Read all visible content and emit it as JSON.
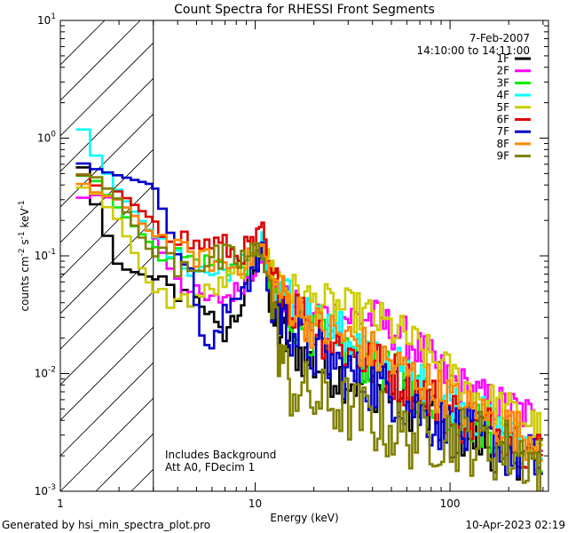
{
  "chart_data": {
    "type": "line",
    "scale": "log-log",
    "title": "Count Spectra for RHESSI Front Segments",
    "xlabel": "Energy (keV)",
    "ylabel_text": "counts cm",
    "ylabel_sup1": "-2",
    "ylabel_mid": " s",
    "ylabel_sup2": "-1",
    "ylabel_mid2": " keV",
    "ylabel_sup3": "-1",
    "xlim": [
      1,
      320
    ],
    "ylim": [
      0.001,
      10
    ],
    "x_ticks": [
      {
        "value": 1,
        "label": "1"
      },
      {
        "value": 10,
        "label": "10"
      },
      {
        "value": 100,
        "label": "100"
      }
    ],
    "y_ticks": [
      {
        "value": 0.001,
        "base": "10",
        "exp": "-3"
      },
      {
        "value": 0.01,
        "base": "10",
        "exp": "-2"
      },
      {
        "value": 0.1,
        "base": "10",
        "exp": "-1"
      },
      {
        "value": 1,
        "base": "10",
        "exp": "0"
      },
      {
        "value": 10,
        "base": "10",
        "exp": "1"
      }
    ],
    "excluded_region_max_energy": 3,
    "date": "7-Feb-2007",
    "time_range": "14:10:00 to 14:11:00",
    "annotations": [
      "Includes Background",
      "Att A0, FDecim 1"
    ],
    "footer_left": "Generated by hsi_min_spectra_plot.pro",
    "footer_right": "10-Apr-2023 02:19",
    "series": [
      {
        "name": "1F",
        "color": "#000000",
        "noise": 0.22,
        "points": [
          [
            1.2,
            0.85
          ],
          [
            1.5,
            0.3
          ],
          [
            2.0,
            0.08
          ],
          [
            3.0,
            0.065
          ],
          [
            4.0,
            0.045
          ],
          [
            5.5,
            0.042
          ],
          [
            6.5,
            0.02
          ],
          [
            8.0,
            0.03
          ],
          [
            9.5,
            0.06
          ],
          [
            11,
            0.14
          ],
          [
            12,
            0.03
          ],
          [
            14,
            0.02
          ],
          [
            20,
            0.012
          ],
          [
            30,
            0.009
          ],
          [
            50,
            0.007
          ],
          [
            80,
            0.004
          ],
          [
            120,
            0.003
          ],
          [
            200,
            0.0022
          ],
          [
            300,
            0.0018
          ]
        ]
      },
      {
        "name": "2F",
        "color": "#ff00ff",
        "noise": 0.18,
        "points": [
          [
            1.2,
            0.3
          ],
          [
            1.5,
            0.33
          ],
          [
            2.0,
            0.3
          ],
          [
            3.0,
            0.15
          ],
          [
            4.5,
            0.05
          ],
          [
            6.0,
            0.04
          ],
          [
            8.0,
            0.05
          ],
          [
            10,
            0.08
          ],
          [
            11,
            0.12
          ],
          [
            12,
            0.05
          ],
          [
            15,
            0.035
          ],
          [
            20,
            0.032
          ],
          [
            30,
            0.03
          ],
          [
            40,
            0.03
          ],
          [
            60,
            0.02
          ],
          [
            100,
            0.009
          ],
          [
            150,
            0.006
          ],
          [
            250,
            0.0045
          ],
          [
            300,
            0.003
          ]
        ]
      },
      {
        "name": "3F",
        "color": "#00ee00",
        "noise": 0.2,
        "points": [
          [
            1.2,
            0.5
          ],
          [
            1.5,
            0.45
          ],
          [
            2.0,
            0.25
          ],
          [
            3.0,
            0.12
          ],
          [
            5.0,
            0.09
          ],
          [
            8.0,
            0.08
          ],
          [
            10,
            0.09
          ],
          [
            11,
            0.12
          ],
          [
            12,
            0.05
          ],
          [
            15,
            0.03
          ],
          [
            20,
            0.02
          ],
          [
            30,
            0.015
          ],
          [
            50,
            0.01
          ],
          [
            80,
            0.006
          ],
          [
            120,
            0.004
          ],
          [
            200,
            0.003
          ],
          [
            300,
            0.0022
          ]
        ]
      },
      {
        "name": "4F",
        "color": "#00ffff",
        "noise": 0.2,
        "points": [
          [
            1.2,
            1.7
          ],
          [
            1.4,
            0.9
          ],
          [
            2.0,
            0.35
          ],
          [
            3.0,
            0.15
          ],
          [
            4.0,
            0.09
          ],
          [
            6.0,
            0.07
          ],
          [
            8.0,
            0.08
          ],
          [
            10,
            0.1
          ],
          [
            11,
            0.14
          ],
          [
            12,
            0.05
          ],
          [
            15,
            0.04
          ],
          [
            20,
            0.03
          ],
          [
            30,
            0.02
          ],
          [
            50,
            0.012
          ],
          [
            80,
            0.007
          ],
          [
            120,
            0.005
          ],
          [
            200,
            0.003
          ],
          [
            300,
            0.0022
          ]
        ]
      },
      {
        "name": "5F",
        "color": "#cccc00",
        "noise": 0.18,
        "points": [
          [
            1.2,
            0.4
          ],
          [
            1.5,
            0.35
          ],
          [
            2.0,
            0.2
          ],
          [
            3.0,
            0.05
          ],
          [
            4.0,
            0.04
          ],
          [
            6.0,
            0.05
          ],
          [
            8.0,
            0.07
          ],
          [
            10,
            0.1
          ],
          [
            11,
            0.13
          ],
          [
            12,
            0.08
          ],
          [
            15,
            0.05
          ],
          [
            20,
            0.04
          ],
          [
            30,
            0.035
          ],
          [
            40,
            0.03
          ],
          [
            60,
            0.02
          ],
          [
            100,
            0.01
          ],
          [
            150,
            0.006
          ],
          [
            250,
            0.004
          ],
          [
            300,
            0.003
          ]
        ]
      },
      {
        "name": "6F",
        "color": "#dd0000",
        "noise": 0.22,
        "points": [
          [
            1.2,
            0.55
          ],
          [
            1.5,
            0.4
          ],
          [
            2.0,
            0.35
          ],
          [
            3.0,
            0.2
          ],
          [
            4.0,
            0.15
          ],
          [
            5.0,
            0.12
          ],
          [
            6.0,
            0.13
          ],
          [
            7.0,
            0.12
          ],
          [
            8.0,
            0.1
          ],
          [
            10,
            0.13
          ],
          [
            11,
            0.16
          ],
          [
            12,
            0.06
          ],
          [
            15,
            0.04
          ],
          [
            20,
            0.025
          ],
          [
            30,
            0.015
          ],
          [
            50,
            0.01
          ],
          [
            80,
            0.006
          ],
          [
            120,
            0.004
          ],
          [
            200,
            0.003
          ],
          [
            300,
            0.002
          ]
        ]
      },
      {
        "name": "7F",
        "color": "#0000cc",
        "noise": 0.25,
        "points": [
          [
            1.2,
            0.65
          ],
          [
            1.5,
            0.55
          ],
          [
            2.0,
            0.48
          ],
          [
            3.0,
            0.4
          ],
          [
            3.5,
            0.25
          ],
          [
            4.5,
            0.08
          ],
          [
            5.5,
            0.02
          ],
          [
            6.0,
            0.015
          ],
          [
            7.0,
            0.03
          ],
          [
            8.0,
            0.05
          ],
          [
            9.0,
            0.06
          ],
          [
            10,
            0.08
          ],
          [
            11,
            0.1
          ],
          [
            12,
            0.04
          ],
          [
            15,
            0.025
          ],
          [
            20,
            0.015
          ],
          [
            30,
            0.01
          ],
          [
            50,
            0.007
          ],
          [
            80,
            0.004
          ],
          [
            120,
            0.003
          ],
          [
            200,
            0.0022
          ],
          [
            300,
            0.0016
          ]
        ]
      },
      {
        "name": "8F",
        "color": "#ff8800",
        "noise": 0.2,
        "points": [
          [
            1.2,
            0.45
          ],
          [
            1.5,
            0.35
          ],
          [
            2.0,
            0.3
          ],
          [
            3.0,
            0.15
          ],
          [
            4.0,
            0.11
          ],
          [
            6.0,
            0.09
          ],
          [
            8.0,
            0.08
          ],
          [
            10,
            0.1
          ],
          [
            11,
            0.12
          ],
          [
            12,
            0.06
          ],
          [
            15,
            0.04
          ],
          [
            20,
            0.025
          ],
          [
            30,
            0.02
          ],
          [
            50,
            0.012
          ],
          [
            80,
            0.008
          ],
          [
            120,
            0.005
          ],
          [
            200,
            0.0035
          ],
          [
            300,
            0.0025
          ]
        ]
      },
      {
        "name": "9F",
        "color": "#808000",
        "noise": 0.3,
        "points": [
          [
            1.2,
            0.5
          ],
          [
            1.5,
            0.48
          ],
          [
            2.0,
            0.3
          ],
          [
            3.0,
            0.1
          ],
          [
            4.0,
            0.09
          ],
          [
            6.0,
            0.09
          ],
          [
            8.0,
            0.09
          ],
          [
            10,
            0.1
          ],
          [
            11,
            0.12
          ],
          [
            12,
            0.05
          ],
          [
            13,
            0.02
          ],
          [
            15,
            0.008
          ],
          [
            20,
            0.006
          ],
          [
            30,
            0.005
          ],
          [
            40,
            0.004
          ],
          [
            60,
            0.003
          ],
          [
            100,
            0.003
          ],
          [
            150,
            0.0025
          ],
          [
            250,
            0.002
          ],
          [
            300,
            0.0015
          ]
        ]
      }
    ]
  }
}
